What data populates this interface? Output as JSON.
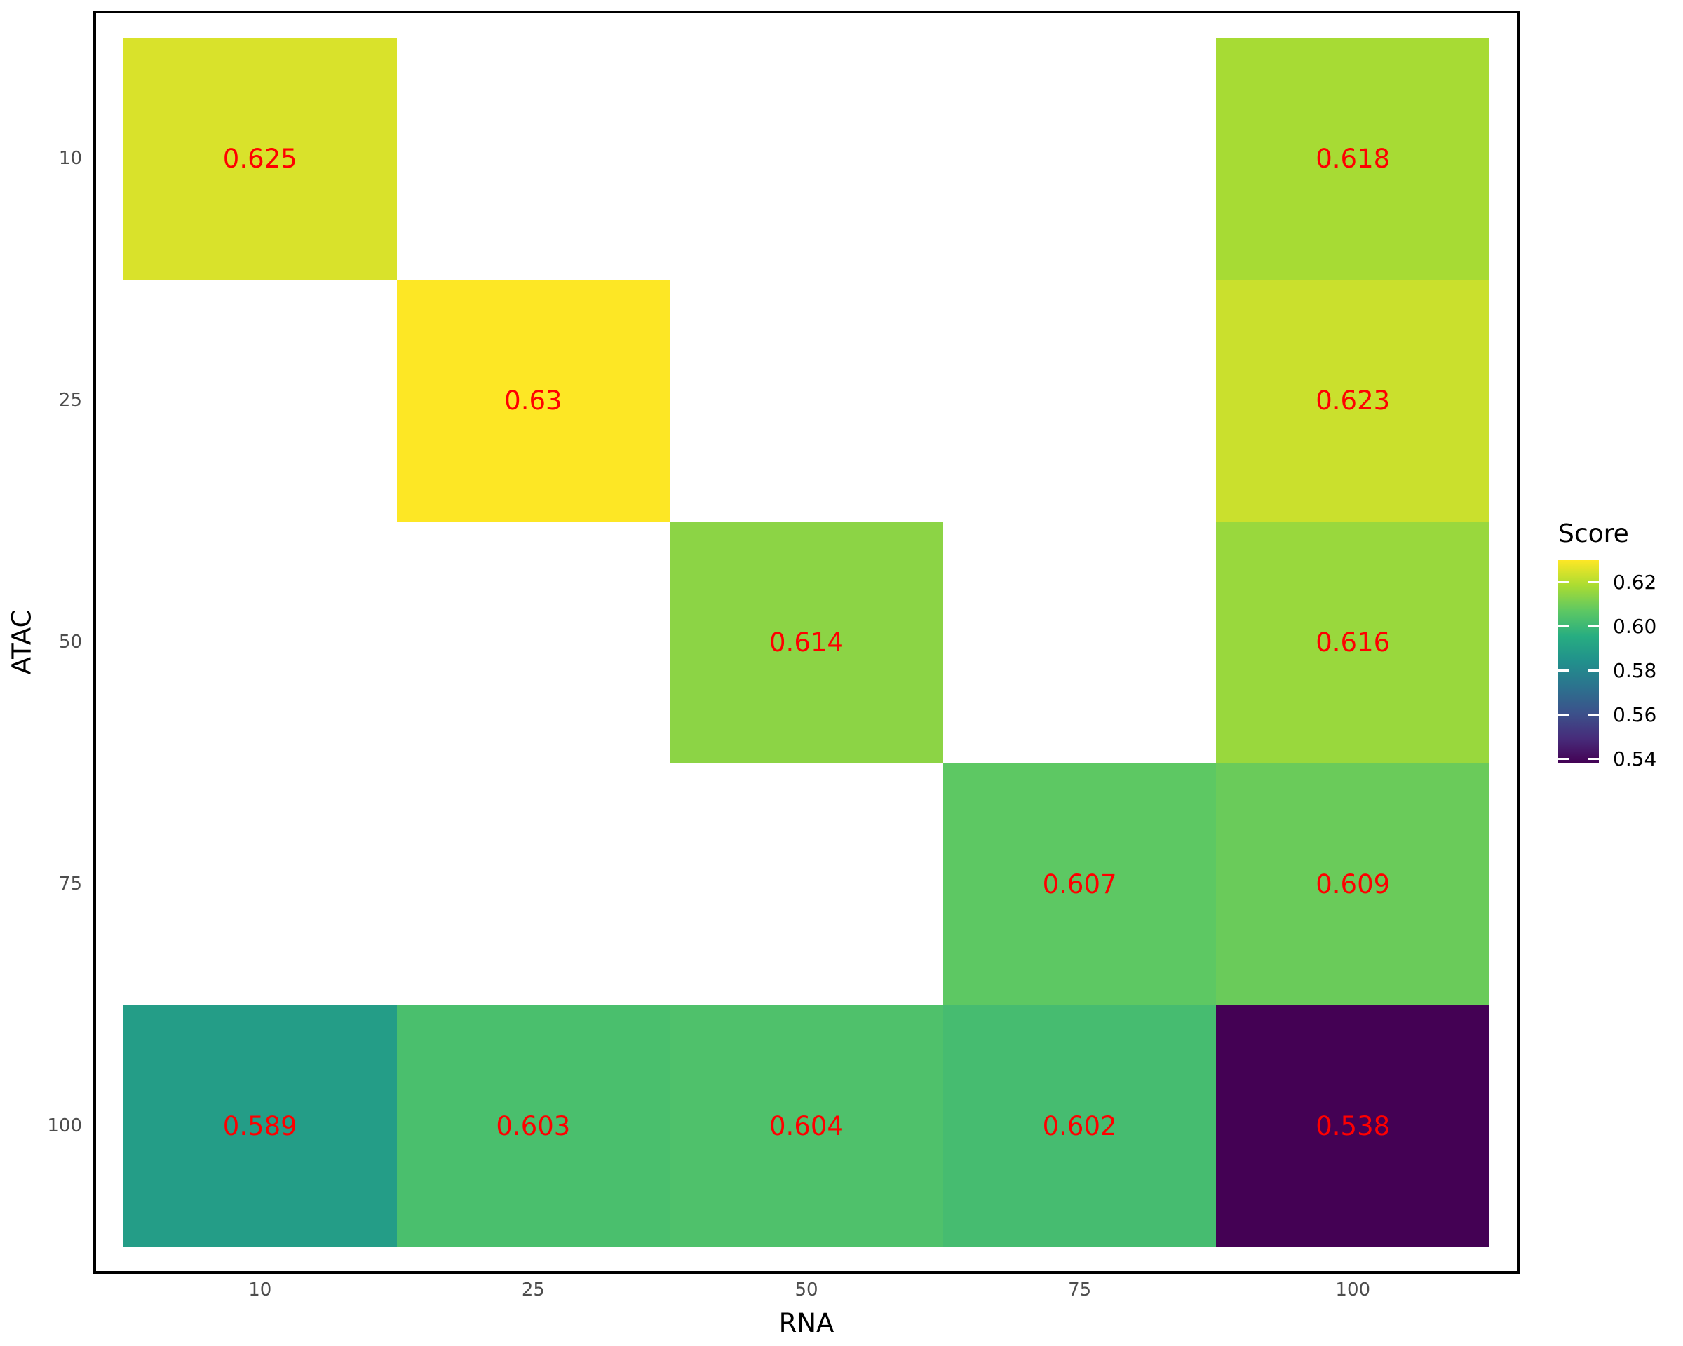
{
  "chart_data": {
    "type": "heatmap",
    "xlabel": "RNA",
    "ylabel": "ATAC",
    "x_categories": [
      "10",
      "25",
      "50",
      "75",
      "100"
    ],
    "y_categories": [
      "10",
      "25",
      "50",
      "75",
      "100"
    ],
    "grid": false,
    "panel_background": "#FFFFFF",
    "cells": [
      {
        "x": "10",
        "y": "10",
        "value": 0.625,
        "label": "0.625"
      },
      {
        "x": "100",
        "y": "10",
        "value": 0.618,
        "label": "0.618"
      },
      {
        "x": "25",
        "y": "25",
        "value": 0.63,
        "label": "0.63"
      },
      {
        "x": "100",
        "y": "25",
        "value": 0.623,
        "label": "0.623"
      },
      {
        "x": "50",
        "y": "50",
        "value": 0.614,
        "label": "0.614"
      },
      {
        "x": "100",
        "y": "50",
        "value": 0.616,
        "label": "0.616"
      },
      {
        "x": "75",
        "y": "75",
        "value": 0.607,
        "label": "0.607"
      },
      {
        "x": "100",
        "y": "75",
        "value": 0.609,
        "label": "0.609"
      },
      {
        "x": "10",
        "y": "100",
        "value": 0.589,
        "label": "0.589"
      },
      {
        "x": "25",
        "y": "100",
        "value": 0.603,
        "label": "0.603"
      },
      {
        "x": "50",
        "y": "100",
        "value": 0.604,
        "label": "0.604"
      },
      {
        "x": "75",
        "y": "100",
        "value": 0.602,
        "label": "0.602"
      },
      {
        "x": "100",
        "y": "100",
        "value": 0.538,
        "label": "0.538"
      }
    ],
    "legend": {
      "title": "Score",
      "position": "right",
      "tick_labels": [
        "0.62",
        "0.60",
        "0.58",
        "0.56",
        "0.54"
      ],
      "tick_values": [
        0.62,
        0.6,
        0.58,
        0.56,
        0.54
      ],
      "domain_min": 0.538,
      "domain_max": 0.63
    },
    "colors": {
      "cell_label": "#FF0000",
      "axis_tick_text": "#4D4D4D",
      "axis_title_text": "#000000",
      "panel_border": "#000000",
      "background": "#FFFFFF",
      "legend_tick_mark": "#FFFFFF",
      "viridis_stops": [
        "#440154",
        "#472D7B",
        "#3B528B",
        "#2C728E",
        "#21908C",
        "#27AD81",
        "#5DC863",
        "#AADC32",
        "#FDE725"
      ]
    }
  }
}
